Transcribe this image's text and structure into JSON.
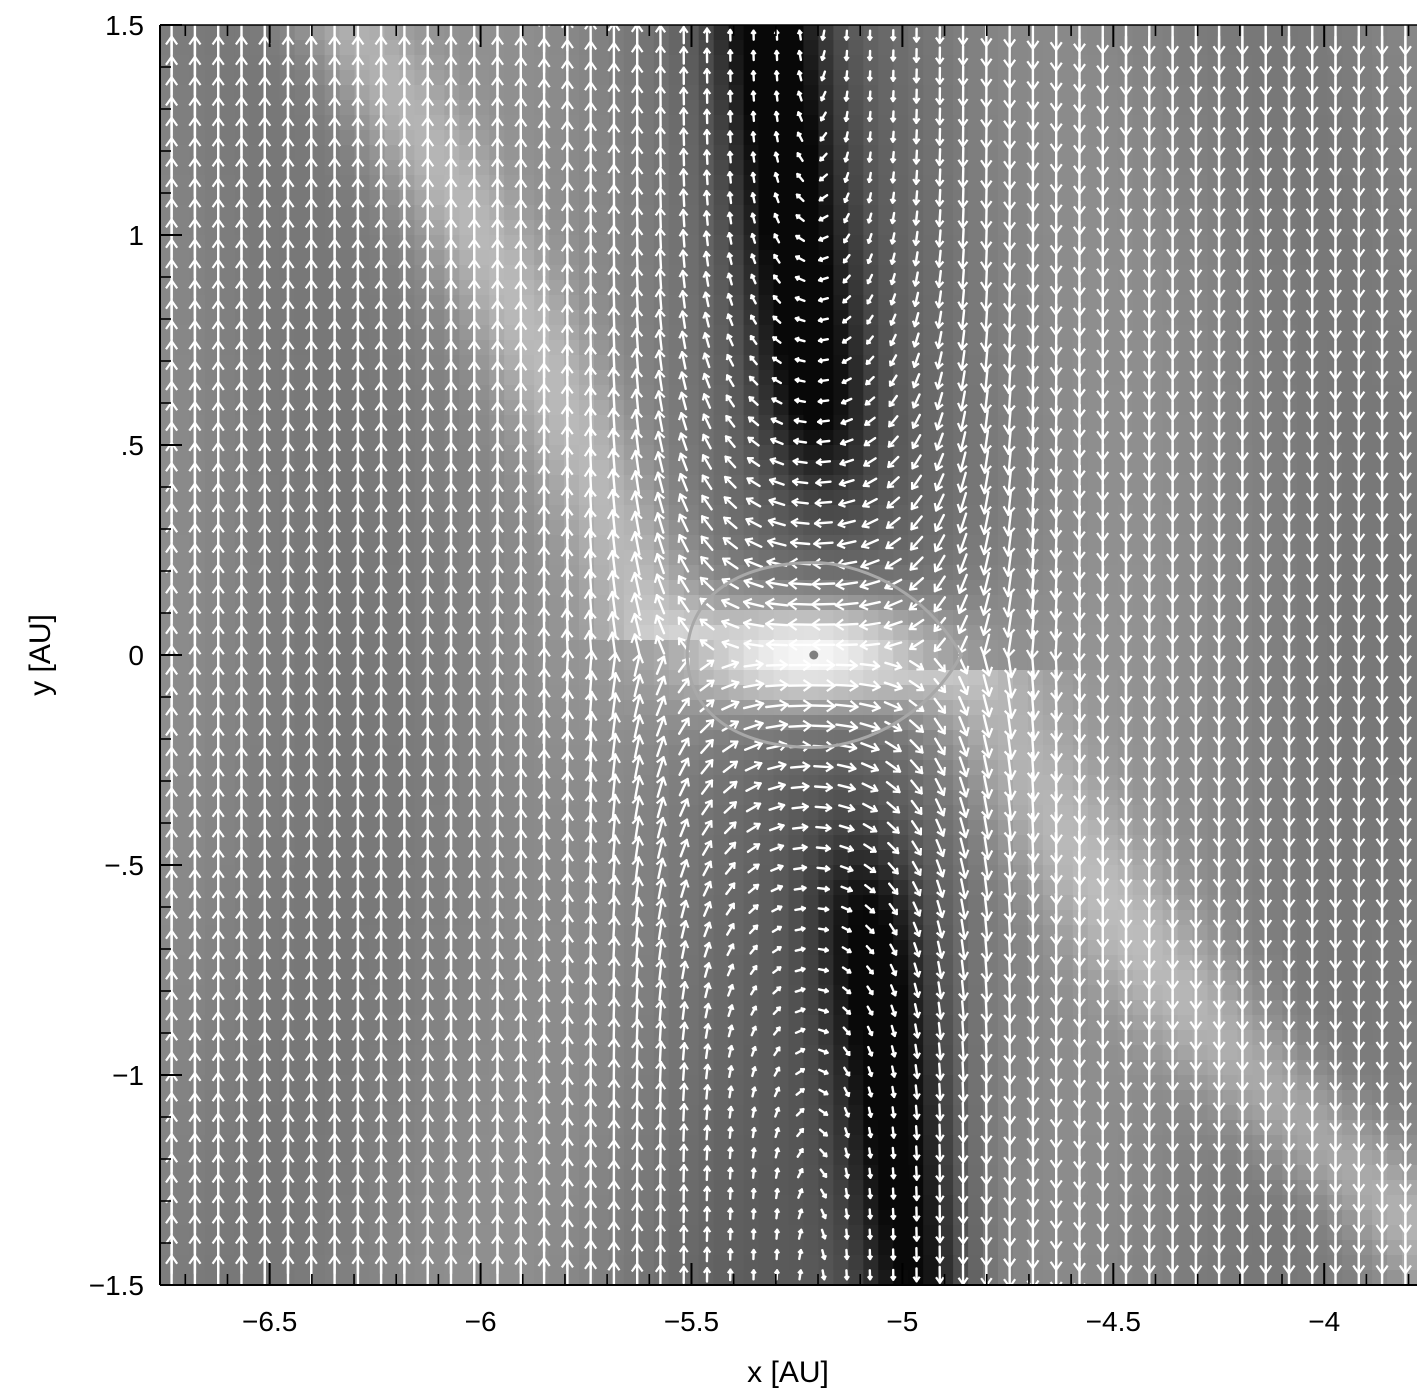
{
  "chart_data": {
    "type": "heatmap",
    "overlay": "vector-field",
    "title": "",
    "xlabel": "x [AU]",
    "ylabel": "y [AU]",
    "xlim": [
      -6.76,
      -3.78
    ],
    "ylim": [
      -1.5,
      1.5
    ],
    "xticks": [
      {
        "value": -6.5,
        "label": "−6.5"
      },
      {
        "value": -6.0,
        "label": "−6"
      },
      {
        "value": -5.5,
        "label": "−5.5"
      },
      {
        "value": -5.0,
        "label": "−5"
      },
      {
        "value": -4.5,
        "label": "−4.5"
      },
      {
        "value": -4.0,
        "label": "−4"
      }
    ],
    "yticks": [
      {
        "value": -1.5,
        "label": "−1.5"
      },
      {
        "value": -1.0,
        "label": "−1"
      },
      {
        "value": -0.5,
        "label": "−.5"
      },
      {
        "value": 0.0,
        "label": "0"
      },
      {
        "value": 0.5,
        "label": ".5"
      },
      {
        "value": 1.0,
        "label": "1"
      },
      {
        "value": 1.5,
        "label": "1.5"
      }
    ],
    "colormap": "grayscale",
    "planet": {
      "x": -5.21,
      "y": 0.0
    },
    "roche_lobe": {
      "x_min": -5.51,
      "x_max": -4.86,
      "y_half_height": 0.22
    },
    "arrow_color": "#ffffff",
    "lobe_color": "#a8a8a8",
    "planet_color": "#808080",
    "grid": false,
    "legend": "none"
  }
}
